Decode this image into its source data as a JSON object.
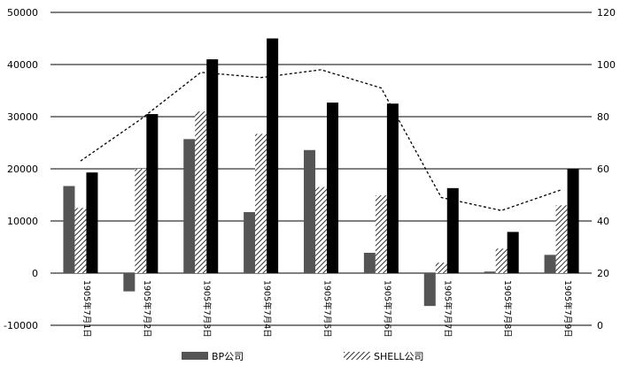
{
  "chart_data": {
    "type": "bar",
    "categories": [
      "1905年7月1日",
      "1905年7月2日",
      "1905年7月3日",
      "1905年7月4日",
      "1905年7月5日",
      "1905年7月6日",
      "1905年7月7日",
      "1905年7月8日",
      "1905年7月9日"
    ],
    "y_left": {
      "min": -10000,
      "max": 50000,
      "step": 10000,
      "ticks": [
        "50000",
        "40000",
        "30000",
        "20000",
        "10000",
        "0",
        "-10000"
      ]
    },
    "y_right": {
      "min": 0,
      "max": 120,
      "step": 20,
      "ticks": [
        "120",
        "100",
        "80",
        "60",
        "40",
        "20",
        "0"
      ]
    },
    "series": [
      {
        "name": "BP公司",
        "axis": "left",
        "style": "solid-gray",
        "color": "#555555",
        "values": [
          16700,
          -3500,
          25700,
          11700,
          23600,
          3900,
          -6300,
          300,
          3500
        ]
      },
      {
        "name": "SHELL公司",
        "axis": "left",
        "style": "hatched",
        "color": "#000000",
        "values": [
          12500,
          20000,
          31000,
          26700,
          16500,
          14900,
          2000,
          4700,
          13000
        ]
      },
      {
        "name": "",
        "axis": "left",
        "style": "solid-black",
        "color": "#000000",
        "values": [
          19300,
          30500,
          41000,
          45000,
          32700,
          32500,
          16300,
          7900,
          20000
        ]
      },
      {
        "name": "",
        "axis": "right",
        "type": "line",
        "style": "dashed",
        "color": "#000000",
        "values": [
          63,
          79,
          97,
          95,
          98,
          91,
          49,
          44,
          52
        ]
      }
    ],
    "legend": {
      "placement": "bottom",
      "items": [
        {
          "label": "BP公司",
          "style": "solid-gray"
        },
        {
          "label": "SHELL公司",
          "style": "hatched"
        }
      ]
    },
    "grid": true
  }
}
